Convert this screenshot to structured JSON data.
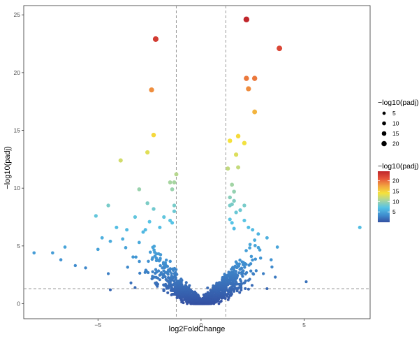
{
  "chart_data": {
    "type": "scatter",
    "title": "",
    "xlabel": "log2FoldChange",
    "ylabel": "−log10(padj)",
    "xlim": [
      -8.6,
      8.2
    ],
    "ylim": [
      -1.3,
      25.8
    ],
    "x_ticks": [
      -5,
      0,
      5
    ],
    "y_ticks": [
      0,
      5,
      10,
      15,
      20,
      25
    ],
    "x_tick_labels": [
      "−5",
      "0",
      "5"
    ],
    "y_tick_labels": [
      "0",
      "5",
      "10",
      "15",
      "20",
      "25"
    ],
    "grid": false,
    "panel_border": true,
    "reference_lines": {
      "vertical": [
        -1.2,
        1.2
      ],
      "horizontal": [
        1.3
      ],
      "style": "dashed",
      "color": "#999999"
    },
    "color_scale": {
      "title": "−log10(padj)",
      "min": 0,
      "max": 24.6,
      "breaks": [
        5,
        10,
        15,
        20
      ],
      "break_labels": [
        "5",
        "10",
        "15",
        "20"
      ],
      "colors": [
        "#3450a2",
        "#3f8fd0",
        "#55c3e6",
        "#a8d5a0",
        "#f5e23a",
        "#f2a33f",
        "#e5543a",
        "#c0262b"
      ]
    },
    "size_legend": {
      "title": "−log10(padj)",
      "breaks": [
        5,
        10,
        15,
        20
      ],
      "break_labels": [
        "5",
        "10",
        "15",
        "20"
      ]
    },
    "legend_position": "right",
    "points": [
      {
        "x": 2.2,
        "y": 24.6
      },
      {
        "x": -2.2,
        "y": 22.9
      },
      {
        "x": 3.8,
        "y": 22.1
      },
      {
        "x": 2.2,
        "y": 19.5
      },
      {
        "x": 2.6,
        "y": 19.5
      },
      {
        "x": 2.3,
        "y": 18.6
      },
      {
        "x": -2.4,
        "y": 18.5
      },
      {
        "x": 2.6,
        "y": 16.6
      },
      {
        "x": 1.8,
        "y": 14.5
      },
      {
        "x": -2.3,
        "y": 14.6
      },
      {
        "x": 1.4,
        "y": 14.1
      },
      {
        "x": 2.1,
        "y": 13.9
      },
      {
        "x": -2.6,
        "y": 13.1
      },
      {
        "x": 1.7,
        "y": 12.9
      },
      {
        "x": -3.9,
        "y": 12.4
      },
      {
        "x": 1.3,
        "y": 11.7
      },
      {
        "x": 1.8,
        "y": 11.8
      },
      {
        "x": -1.2,
        "y": 11.2
      },
      {
        "x": -1.3,
        "y": 10.5
      },
      {
        "x": -1.5,
        "y": 10.5
      },
      {
        "x": 1.5,
        "y": 10.3
      },
      {
        "x": -3.0,
        "y": 9.9
      },
      {
        "x": -1.4,
        "y": 9.9
      },
      {
        "x": 1.6,
        "y": 9.7
      },
      {
        "x": 1.4,
        "y": 9.2
      },
      {
        "x": 1.6,
        "y": 8.9
      },
      {
        "x": 1.5,
        "y": 8.6
      },
      {
        "x": 1.4,
        "y": 8.5
      },
      {
        "x": -4.5,
        "y": 8.5
      },
      {
        "x": -2.6,
        "y": 8.7
      },
      {
        "x": -1.3,
        "y": 8.5
      },
      {
        "x": 2.1,
        "y": 8.5
      },
      {
        "x": 1.9,
        "y": 8.1
      },
      {
        "x": -2.3,
        "y": 8.2
      },
      {
        "x": -1.3,
        "y": 8.0
      },
      {
        "x": 1.7,
        "y": 7.9
      },
      {
        "x": -5.1,
        "y": 7.6
      },
      {
        "x": -3.2,
        "y": 7.5
      },
      {
        "x": -1.8,
        "y": 7.5
      },
      {
        "x": -1.5,
        "y": 7.2
      },
      {
        "x": -2.5,
        "y": 7.1
      },
      {
        "x": 1.5,
        "y": 7.0
      },
      {
        "x": 2.1,
        "y": 7.2
      },
      {
        "x": 1.4,
        "y": 7.3
      },
      {
        "x": -1.4,
        "y": 7.0
      },
      {
        "x": 7.7,
        "y": 6.6
      },
      {
        "x": -4.1,
        "y": 6.6
      },
      {
        "x": -3.6,
        "y": 6.4
      },
      {
        "x": -2.7,
        "y": 6.4
      },
      {
        "x": -2.0,
        "y": 6.6
      },
      {
        "x": 2.5,
        "y": 6.4
      },
      {
        "x": 2.3,
        "y": 6.6
      },
      {
        "x": 1.6,
        "y": 6.5
      },
      {
        "x": -4.8,
        "y": 5.7
      },
      {
        "x": -4.4,
        "y": 5.4
      },
      {
        "x": -3.8,
        "y": 5.6
      },
      {
        "x": -3.0,
        "y": 5.3
      },
      {
        "x": 3.2,
        "y": 5.7
      },
      {
        "x": 2.6,
        "y": 5.5
      },
      {
        "x": -8.1,
        "y": 4.4
      },
      {
        "x": -7.2,
        "y": 4.4
      },
      {
        "x": -6.6,
        "y": 4.9
      },
      {
        "x": -6.8,
        "y": 3.8
      },
      {
        "x": -6.1,
        "y": 3.3
      },
      {
        "x": -5.6,
        "y": 3.1
      },
      {
        "x": -5.0,
        "y": 4.7
      },
      {
        "x": -4.5,
        "y": 2.6
      },
      {
        "x": -4.4,
        "y": 1.2
      },
      {
        "x": 5.1,
        "y": 1.9
      },
      {
        "x": 3.7,
        "y": 4.9
      },
      {
        "x": 3.4,
        "y": 3.8
      },
      {
        "x": 3.2,
        "y": 1.3
      },
      {
        "x": 3.6,
        "y": 2.3
      },
      {
        "x": -3.2,
        "y": 1.4
      },
      {
        "x": -3.4,
        "y": 1.8
      }
    ],
    "dense_cloud": {
      "description_note": "",
      "fold_change_range": [
        -4.0,
        4.0
      ],
      "max_value": 6.2,
      "count": 1400
    }
  }
}
